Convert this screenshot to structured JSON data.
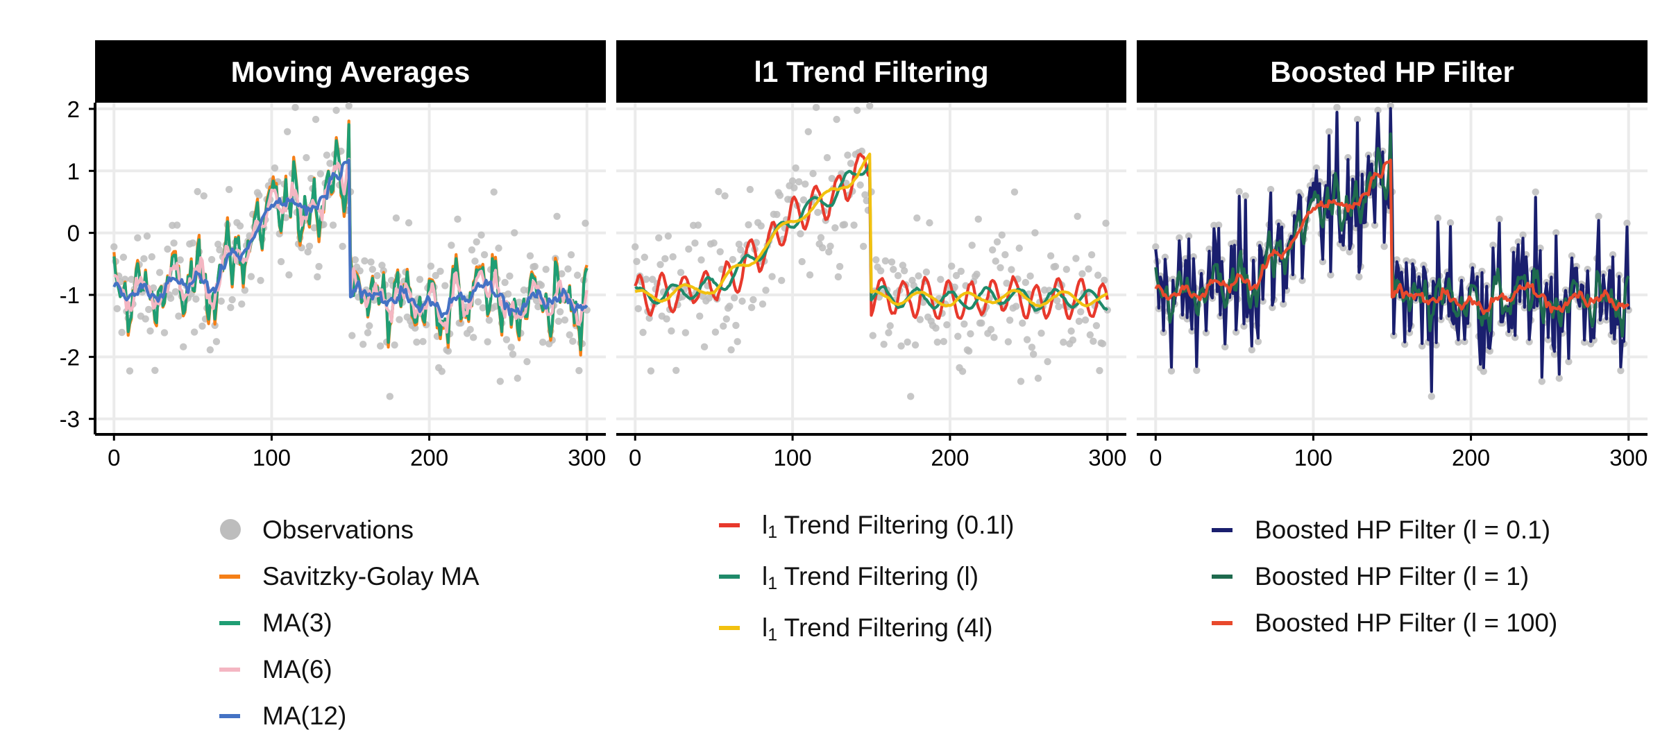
{
  "chart_data": [
    {
      "type": "line",
      "title": "Moving Averages",
      "xlabel": "",
      "ylabel": "",
      "xlim": [
        -12,
        312
      ],
      "ylim": [
        -3.25,
        2.1
      ],
      "x_ticks": [
        0,
        100,
        200,
        300
      ],
      "y_ticks": [
        2,
        1,
        0,
        -1,
        -2,
        -3
      ],
      "observations": {
        "name": "Observations",
        "color": "#bdbdbd",
        "n": 300
      },
      "series": [
        {
          "name": "Savitzky-Golay MA",
          "color": "#f57f17",
          "kind": "savgol"
        },
        {
          "name": "MA(3)",
          "color": "#1f9e74",
          "kind": "ma3"
        },
        {
          "name": "MA(6)",
          "color": "#f4b6c2",
          "kind": "ma6"
        },
        {
          "name": "MA(12)",
          "color": "#4472c4",
          "kind": "ma12"
        }
      ]
    },
    {
      "type": "line",
      "title": "l1 Trend Filtering",
      "xlabel": "",
      "ylabel": "",
      "xlim": [
        -12,
        312
      ],
      "ylim": [
        -3.25,
        2.1
      ],
      "x_ticks": [
        0,
        100,
        200,
        300
      ],
      "observations": {
        "name": "Observations",
        "color": "#bdbdbd",
        "n": 300
      },
      "series": [
        {
          "name": "l1 Trend Filtering (0.1l)",
          "color": "#e8392c",
          "kind": "l1_01"
        },
        {
          "name": "l1 Trend Filtering (l)",
          "color": "#1f8a6a",
          "kind": "l1_1"
        },
        {
          "name": "l1 Trend Filtering (4l)",
          "color": "#f2c10f",
          "kind": "l1_4"
        }
      ]
    },
    {
      "type": "line",
      "title": "Boosted HP Filter",
      "xlabel": "",
      "ylabel": "",
      "xlim": [
        -12,
        312
      ],
      "ylim": [
        -3.25,
        2.1
      ],
      "x_ticks": [
        0,
        100,
        200,
        300
      ],
      "observations": {
        "name": "Observations",
        "color": "#bdbdbd",
        "n": 300
      },
      "series": [
        {
          "name": "Boosted HP Filter (l = 0.1)",
          "color": "#1a1f6e",
          "kind": "hp01"
        },
        {
          "name": "Boosted HP Filter (l = 1)",
          "color": "#1e6a4e",
          "kind": "hp1"
        },
        {
          "name": "Boosted HP Filter (l = 100)",
          "color": "#e8492c",
          "kind": "hp100"
        }
      ]
    }
  ],
  "legends": {
    "moving_averages": [
      {
        "label": "Observations",
        "color": "#bdbdbd",
        "symbol": "dot"
      },
      {
        "label": "Savitzky-Golay MA",
        "color": "#f57f17",
        "symbol": "line"
      },
      {
        "label": "MA(3)",
        "color": "#1f9e74",
        "symbol": "line"
      },
      {
        "label": "MA(6)",
        "color": "#f4b6c2",
        "symbol": "line"
      },
      {
        "label": "MA(12)",
        "color": "#4472c4",
        "symbol": "line"
      }
    ],
    "l1_trend": [
      {
        "prefix": "l",
        "sub": "1",
        "rest": " Trend Filtering (0.1l)",
        "color": "#e8392c"
      },
      {
        "prefix": "l",
        "sub": "1",
        "rest": " Trend Filtering (l)",
        "color": "#1f8a6a"
      },
      {
        "prefix": "l",
        "sub": "1",
        "rest": " Trend Filtering (4l)",
        "color": "#f2c10f"
      }
    ],
    "boosted_hp": [
      {
        "label": "Boosted HP Filter (l = 0.1)",
        "color": "#1a1f6e"
      },
      {
        "label": "Boosted HP Filter (l = 1)",
        "color": "#1e6a4e"
      },
      {
        "label": "Boosted HP Filter (l = 100)",
        "color": "#e8492c"
      }
    ]
  }
}
